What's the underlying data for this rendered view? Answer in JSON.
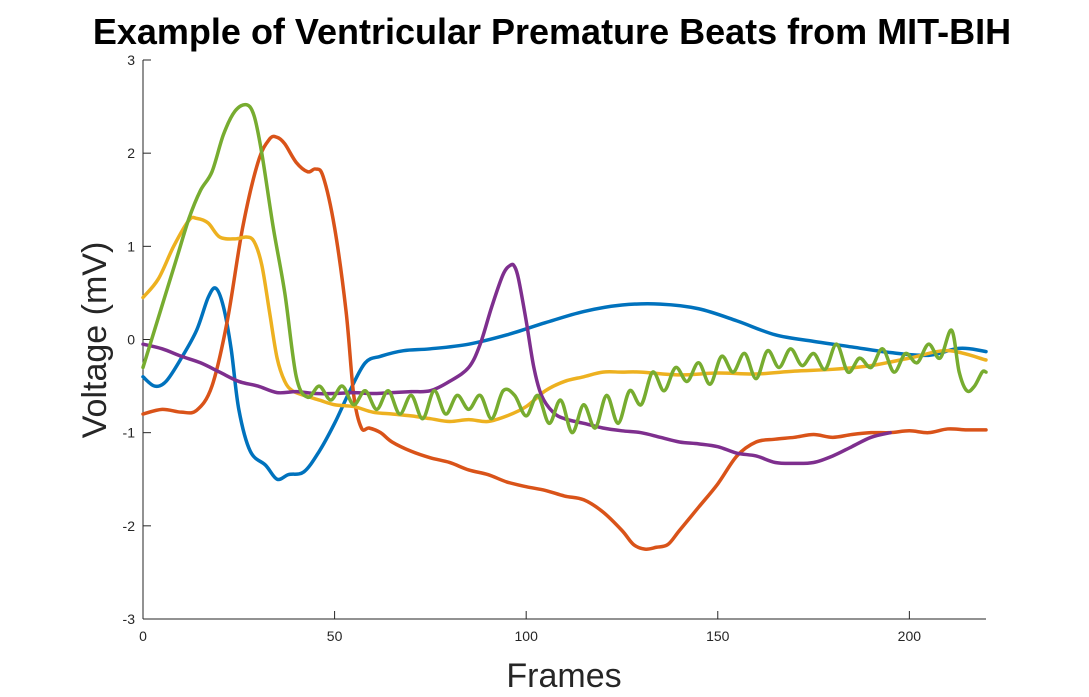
{
  "chart_data": {
    "type": "line",
    "title": "Example of Ventricular Premature Beats from MIT-BIH",
    "xlabel": "Frames",
    "ylabel": "Voltage (mV)",
    "xlim": [
      0,
      220
    ],
    "ylim": [
      -3,
      3
    ],
    "xticks": [
      0,
      50,
      100,
      150,
      200
    ],
    "yticks": [
      -3,
      -2,
      -1,
      0,
      1,
      2,
      3
    ],
    "grid": false,
    "legend": "none",
    "series": [
      {
        "color": "#0072BD",
        "x": [
          0,
          3,
          6,
          10,
          14,
          17,
          19,
          21,
          23,
          25,
          28,
          32,
          35,
          38,
          42,
          46,
          50,
          54,
          58,
          62,
          68,
          75,
          85,
          95,
          105,
          115,
          125,
          135,
          145,
          155,
          165,
          175,
          185,
          195,
          205,
          212,
          216,
          220
        ],
        "y": [
          -0.4,
          -0.5,
          -0.45,
          -0.2,
          0.1,
          0.45,
          0.55,
          0.35,
          -0.1,
          -0.75,
          -1.2,
          -1.35,
          -1.5,
          -1.45,
          -1.42,
          -1.2,
          -0.9,
          -0.55,
          -0.25,
          -0.18,
          -0.12,
          -0.1,
          -0.05,
          0.05,
          0.18,
          0.3,
          0.37,
          0.38,
          0.33,
          0.2,
          0.05,
          -0.02,
          -0.08,
          -0.14,
          -0.17,
          -0.1,
          -0.1,
          -0.13
        ]
      },
      {
        "color": "#D95319",
        "x": [
          0,
          5,
          10,
          14,
          18,
          22,
          26,
          30,
          33,
          35,
          37,
          40,
          43,
          45,
          47,
          50,
          53,
          55,
          57,
          59,
          62,
          65,
          70,
          75,
          80,
          85,
          90,
          95,
          100,
          105,
          110,
          115,
          120,
          125,
          128,
          131,
          134,
          137,
          140,
          145,
          150,
          155,
          160,
          165,
          170,
          175,
          180,
          185,
          190,
          195,
          200,
          205,
          210,
          215,
          220
        ],
        "y": [
          -0.8,
          -0.75,
          -0.78,
          -0.76,
          -0.5,
          0.2,
          1.2,
          1.9,
          2.15,
          2.17,
          2.1,
          1.9,
          1.8,
          1.83,
          1.75,
          1.2,
          0.3,
          -0.6,
          -0.95,
          -0.95,
          -1.0,
          -1.1,
          -1.2,
          -1.27,
          -1.32,
          -1.4,
          -1.45,
          -1.53,
          -1.58,
          -1.62,
          -1.68,
          -1.72,
          -1.85,
          -2.05,
          -2.2,
          -2.25,
          -2.23,
          -2.2,
          -2.05,
          -1.8,
          -1.55,
          -1.25,
          -1.1,
          -1.07,
          -1.05,
          -1.02,
          -1.05,
          -1.02,
          -1.0,
          -1.0,
          -0.98,
          -1.0,
          -0.96,
          -0.97,
          -0.97
        ]
      },
      {
        "color": "#EDB120",
        "x": [
          0,
          4,
          8,
          12,
          14,
          17,
          20,
          24,
          27,
          29,
          31,
          33,
          35,
          37,
          39,
          42,
          46,
          50,
          55,
          60,
          65,
          70,
          75,
          80,
          85,
          90,
          95,
          100,
          105,
          110,
          115,
          120,
          125,
          130,
          140,
          150,
          160,
          170,
          180,
          190,
          200,
          210,
          220
        ],
        "y": [
          0.45,
          0.65,
          1.0,
          1.28,
          1.3,
          1.25,
          1.1,
          1.08,
          1.1,
          1.05,
          0.8,
          0.3,
          -0.2,
          -0.45,
          -0.55,
          -0.6,
          -0.65,
          -0.7,
          -0.72,
          -0.78,
          -0.8,
          -0.82,
          -0.85,
          -0.88,
          -0.86,
          -0.88,
          -0.82,
          -0.72,
          -0.55,
          -0.45,
          -0.4,
          -0.35,
          -0.35,
          -0.35,
          -0.38,
          -0.36,
          -0.37,
          -0.34,
          -0.32,
          -0.28,
          -0.2,
          -0.12,
          -0.22
        ]
      },
      {
        "color": "#7E2F8E",
        "x": [
          0,
          5,
          10,
          15,
          20,
          25,
          30,
          35,
          40,
          45,
          50,
          55,
          60,
          65,
          70,
          75,
          80,
          85,
          88,
          91,
          94,
          96,
          97,
          98,
          100,
          102,
          104,
          107,
          110,
          115,
          120,
          125,
          130,
          135,
          140,
          145,
          150,
          155,
          160,
          165,
          170,
          175,
          180,
          185,
          190,
          195
        ],
        "y": [
          -0.05,
          -0.1,
          -0.18,
          -0.25,
          -0.35,
          -0.45,
          -0.5,
          -0.57,
          -0.56,
          -0.58,
          -0.58,
          -0.57,
          -0.58,
          -0.57,
          -0.56,
          -0.55,
          -0.45,
          -0.3,
          -0.05,
          0.35,
          0.7,
          0.8,
          0.78,
          0.65,
          0.2,
          -0.3,
          -0.6,
          -0.78,
          -0.85,
          -0.9,
          -0.95,
          -0.98,
          -1.0,
          -1.05,
          -1.1,
          -1.12,
          -1.15,
          -1.22,
          -1.25,
          -1.32,
          -1.33,
          -1.32,
          -1.25,
          -1.15,
          -1.05,
          -1.0
        ]
      },
      {
        "color": "#77AC30",
        "x": [
          0,
          3,
          6,
          9,
          12,
          15,
          18,
          21,
          24,
          27,
          29,
          31,
          34,
          37,
          40,
          43,
          46,
          49,
          52,
          55,
          58,
          61,
          64,
          67,
          70,
          73,
          76,
          79,
          82,
          85,
          88,
          91,
          94,
          97,
          100,
          103,
          106,
          109,
          112,
          115,
          118,
          121,
          124,
          127,
          130,
          133,
          136,
          139,
          142,
          145,
          148,
          151,
          154,
          157,
          160,
          163,
          166,
          169,
          172,
          175,
          178,
          181,
          184,
          187,
          190,
          193,
          196,
          199,
          202,
          205,
          208,
          211,
          213,
          215,
          217,
          219,
          220
        ],
        "y": [
          -0.3,
          0.1,
          0.5,
          0.9,
          1.3,
          1.6,
          1.8,
          2.2,
          2.45,
          2.52,
          2.4,
          2.0,
          1.2,
          0.5,
          -0.4,
          -0.62,
          -0.5,
          -0.65,
          -0.5,
          -0.7,
          -0.55,
          -0.75,
          -0.55,
          -0.8,
          -0.6,
          -0.85,
          -0.55,
          -0.8,
          -0.6,
          -0.75,
          -0.6,
          -0.85,
          -0.55,
          -0.6,
          -0.82,
          -0.6,
          -0.9,
          -0.65,
          -1.0,
          -0.7,
          -0.95,
          -0.6,
          -0.9,
          -0.55,
          -0.7,
          -0.35,
          -0.55,
          -0.3,
          -0.45,
          -0.25,
          -0.48,
          -0.18,
          -0.35,
          -0.15,
          -0.42,
          -0.12,
          -0.3,
          -0.1,
          -0.28,
          -0.15,
          -0.32,
          -0.05,
          -0.35,
          -0.2,
          -0.3,
          -0.1,
          -0.35,
          -0.15,
          -0.25,
          -0.05,
          -0.2,
          0.1,
          -0.35,
          -0.55,
          -0.5,
          -0.35,
          -0.35
        ]
      }
    ]
  }
}
